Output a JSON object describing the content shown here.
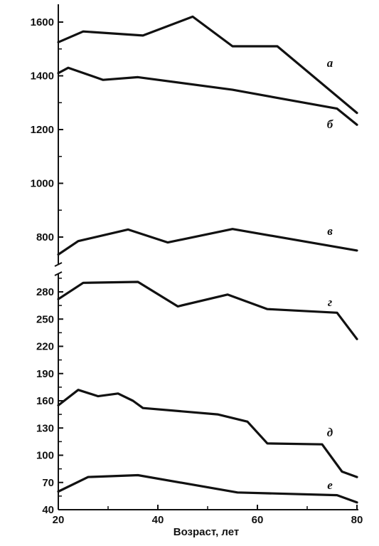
{
  "chart_data": {
    "type": "line",
    "xlabel": "Возраст, лет",
    "xlim": [
      20,
      80
    ],
    "x_ticks": [
      "20",
      "40",
      "60",
      "80"
    ],
    "upper_panel": {
      "ylim": [
        720,
        1640
      ],
      "y_ticks": [
        "800",
        "1000",
        "1200",
        "1400",
        "1600"
      ],
      "series": [
        {
          "name": "а",
          "x": [
            20,
            25,
            37,
            47,
            55,
            64,
            80
          ],
          "values": [
            1525,
            1565,
            1550,
            1620,
            1510,
            1510,
            1262
          ]
        },
        {
          "name": "б",
          "x": [
            20,
            22,
            29,
            36,
            55,
            76,
            80
          ],
          "values": [
            1410,
            1430,
            1385,
            1395,
            1348,
            1278,
            1218
          ]
        },
        {
          "name": "в",
          "x": [
            20,
            24,
            34,
            42,
            55,
            80
          ],
          "values": [
            735,
            785,
            828,
            780,
            830,
            750
          ]
        }
      ]
    },
    "lower_panel": {
      "ylim": [
        40,
        295
      ],
      "y_ticks": [
        "40",
        "70",
        "100",
        "130",
        "160",
        "190",
        "220",
        "250",
        "280"
      ],
      "series": [
        {
          "name": "г",
          "x": [
            20,
            25,
            36,
            44,
            54,
            62,
            76,
            80
          ],
          "values": [
            272,
            290,
            291,
            264,
            277,
            261,
            257,
            228
          ]
        },
        {
          "name": "д",
          "x": [
            20,
            24,
            28,
            32,
            35,
            37,
            52,
            58,
            62,
            73,
            77,
            80
          ],
          "values": [
            155,
            172,
            165,
            168,
            160,
            152,
            145,
            137,
            113,
            112,
            82,
            76
          ]
        },
        {
          "name": "е",
          "x": [
            20,
            26,
            36,
            56,
            76,
            80
          ],
          "values": [
            60,
            76,
            78,
            59,
            56,
            48
          ]
        }
      ]
    }
  }
}
